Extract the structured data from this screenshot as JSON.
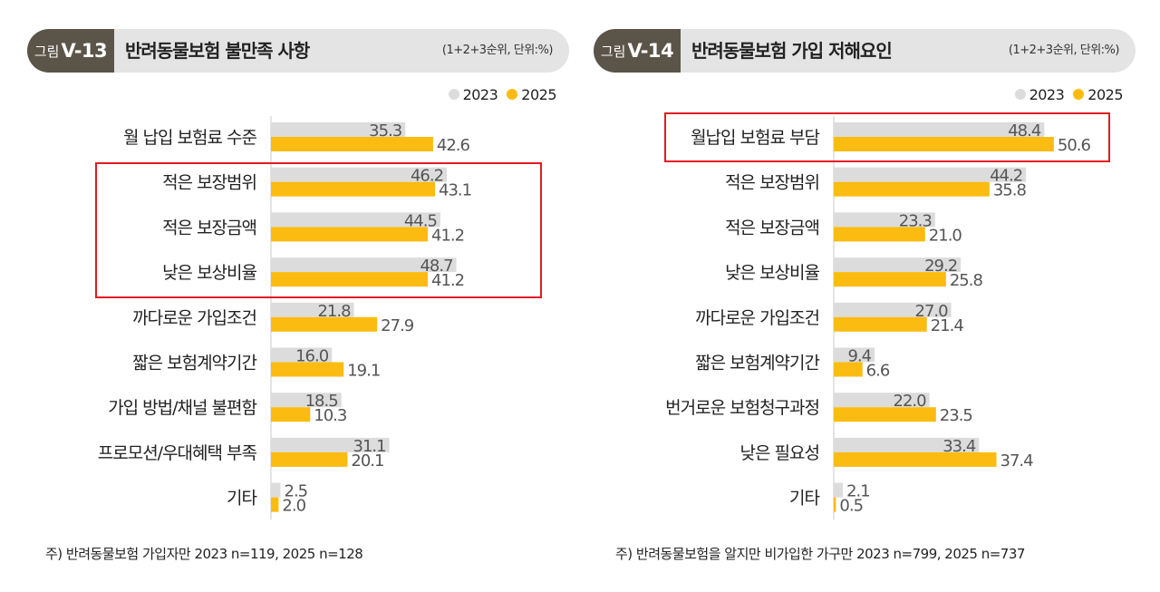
{
  "chart_data": [
    {
      "type": "bar",
      "figure_label_prefix": "그림",
      "figure_label_number": "V-13",
      "title": "반려동물보험 불만족 사항",
      "unit": "(1+2+3순위, 단위:%)",
      "categories": [
        "월 납입 보험료 수준",
        "적은 보장범위",
        "적은 보장금액",
        "낮은 보상비율",
        "까다로운 가입조건",
        "짧은 보험계약기간",
        "가입 방법/채널 불편함",
        "프로모션/우대혜택 부족",
        "기타"
      ],
      "series": [
        {
          "name": "2023",
          "color": "#dcdcdc",
          "values": [
            35.3,
            46.2,
            44.5,
            48.7,
            21.8,
            16.0,
            18.5,
            31.1,
            2.5
          ],
          "labels": [
            "35.3",
            "46.2",
            "44.5",
            "48.7",
            "21.8",
            "16.0",
            "18.5",
            "31.1",
            "2.5"
          ]
        },
        {
          "name": "2025",
          "color": "#fcbb10",
          "values": [
            42.6,
            43.1,
            41.2,
            41.2,
            27.9,
            19.1,
            10.3,
            20.1,
            2.0
          ],
          "labels": [
            "42.6",
            "43.1",
            "41.2",
            "41.2",
            "27.9",
            "19.1",
            "10.3",
            "20.1",
            "2.0"
          ]
        }
      ],
      "xlim": [
        0,
        100
      ],
      "highlight": {
        "from": 1,
        "to": 3
      },
      "note": "주) 반려동물보험 가입자만 2023 n=119, 2025 n=128"
    },
    {
      "type": "bar",
      "figure_label_prefix": "그림",
      "figure_label_number": "V-14",
      "title": "반려동물보험 가입 저해요인",
      "unit": "(1+2+3순위, 단위:%)",
      "categories": [
        "월납입 보험료 부담",
        "적은 보장범위",
        "적은 보장금액",
        "낮은 보상비율",
        "까다로운 가입조건",
        "짧은 보험계약기간",
        "번거로운 보험청구과정",
        "낮은 필요성",
        "기타"
      ],
      "series": [
        {
          "name": "2023",
          "color": "#dcdcdc",
          "values": [
            48.4,
            44.2,
            23.3,
            29.2,
            27.0,
            9.4,
            22.0,
            33.4,
            2.1
          ],
          "labels": [
            "48.4",
            "44.2",
            "23.3",
            "29.2",
            "27.0",
            "9.4",
            "22.0",
            "33.4",
            "2.1"
          ]
        },
        {
          "name": "2025",
          "color": "#fcbb10",
          "values": [
            50.6,
            35.8,
            21.0,
            25.8,
            21.4,
            6.6,
            23.5,
            37.4,
            0.5
          ],
          "labels": [
            "50.6",
            "35.8",
            "21.0",
            "25.8",
            "21.4",
            "6.6",
            "23.5",
            "37.4",
            "0.5"
          ]
        }
      ],
      "xlim": [
        0,
        100
      ],
      "highlight": {
        "from": 0,
        "to": 0
      },
      "note": "주) 반려동물보험을 알지만 비가입한 가구만 2023 n=799, 2025 n=737"
    }
  ]
}
